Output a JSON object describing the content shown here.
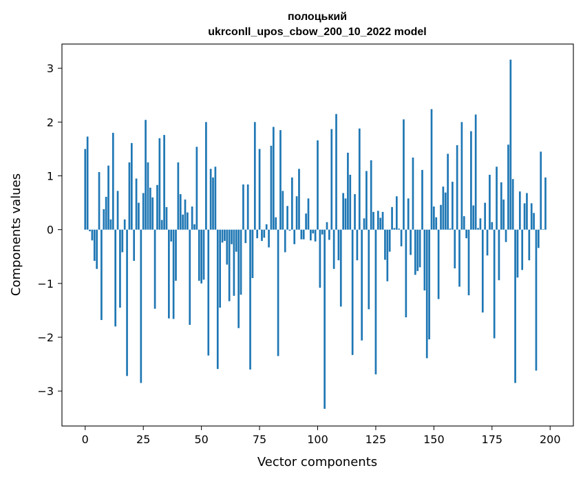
{
  "chart_data": {
    "type": "bar",
    "title": "полоцький\nukrconll_upos_cbow_200_10_2022 model",
    "title_lines": [
      "полоцький",
      "ukrconll_upos_cbow_200_10_2022 model"
    ],
    "xlabel": "Vector components",
    "ylabel": "Components values",
    "xlim": [
      -10,
      210
    ],
    "ylim": [
      -3.65,
      3.45
    ],
    "xticks": [
      0,
      25,
      50,
      75,
      100,
      125,
      150,
      175,
      200
    ],
    "yticks": [
      -3,
      -2,
      -1,
      0,
      1,
      2,
      3
    ],
    "xtick_labels": [
      "0",
      "25",
      "50",
      "75",
      "100",
      "125",
      "150",
      "175",
      "200"
    ],
    "ytick_labels": [
      "−3",
      "−2",
      "−1",
      "0",
      "1",
      "2",
      "3"
    ],
    "bar_color": "#1f77b4",
    "grid": false,
    "legend": "none",
    "values": [
      1.5,
      1.73,
      -0.03,
      -0.2,
      -0.58,
      -0.73,
      1.07,
      -1.68,
      0.38,
      0.61,
      1.19,
      0.19,
      1.8,
      -1.8,
      0.72,
      -1.45,
      -0.42,
      0.19,
      -2.72,
      1.25,
      1.61,
      -0.58,
      0.95,
      0.5,
      -2.85,
      0.68,
      2.04,
      1.25,
      0.78,
      0.6,
      -1.47,
      0.83,
      1.7,
      0.18,
      1.76,
      0.42,
      -1.65,
      -0.22,
      -1.66,
      -0.95,
      1.25,
      0.66,
      0.28,
      0.56,
      0.32,
      -1.77,
      0.43,
      0.1,
      1.54,
      -0.95,
      -1.0,
      -0.93,
      2.0,
      -2.34,
      1.13,
      0.97,
      1.17,
      -2.59,
      -1.45,
      -0.24,
      -0.21,
      -0.65,
      -1.33,
      -0.27,
      -1.23,
      -0.41,
      -1.83,
      -1.21,
      0.84,
      -0.25,
      0.84,
      -2.6,
      -0.9,
      2.0,
      -0.16,
      1.5,
      -0.21,
      -0.15,
      0.1,
      -0.33,
      1.56,
      1.91,
      0.23,
      -2.35,
      1.85,
      0.72,
      -0.42,
      0.44,
      -0.02,
      0.97,
      -0.27,
      0.62,
      1.13,
      -0.18,
      -0.18,
      0.3,
      0.58,
      -0.2,
      -0.07,
      -0.22,
      1.66,
      -1.08,
      -0.09,
      -3.33,
      0.14,
      -0.19,
      1.87,
      -0.73,
      2.15,
      -0.57,
      -1.43,
      0.68,
      0.58,
      1.43,
      1.02,
      -2.33,
      0.66,
      -0.57,
      1.88,
      -2.06,
      0.21,
      1.09,
      -1.48,
      1.29,
      0.33,
      -2.69,
      0.35,
      0.22,
      0.33,
      -0.56,
      -0.96,
      -0.41,
      0.42,
      0.03,
      0.62,
      0.02,
      -0.31,
      2.05,
      -1.63,
      0.58,
      -0.47,
      1.34,
      -0.84,
      -0.77,
      -0.7,
      1.11,
      -1.13,
      -2.39,
      -2.04,
      2.24,
      0.43,
      0.23,
      -1.29,
      0.46,
      0.8,
      0.69,
      1.41,
      0.02,
      0.89,
      -0.72,
      1.57,
      -1.06,
      2.0,
      0.25,
      -0.16,
      -1.22,
      1.83,
      0.45,
      2.14,
      0.03,
      0.21,
      -1.54,
      0.5,
      -0.48,
      1.02,
      0.14,
      -2.02,
      1.17,
      -0.94,
      0.88,
      0.56,
      -0.23,
      1.58,
      3.16,
      0.94,
      -2.85,
      -0.89,
      0.71,
      -0.75,
      0.49,
      0.68,
      -0.57,
      0.49,
      0.31,
      -2.62,
      -0.34,
      1.45,
      0.01,
      0.97
    ]
  }
}
